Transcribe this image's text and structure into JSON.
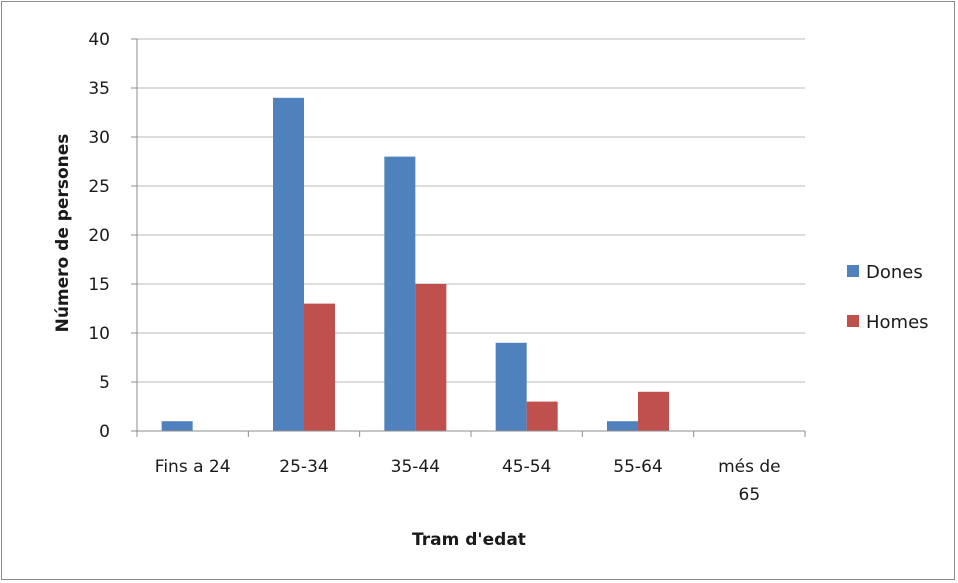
{
  "chart_data": {
    "type": "bar",
    "title": "",
    "xlabel": "Tram d'edat",
    "ylabel": "Número de persones",
    "categories": [
      [
        "Fins a 24"
      ],
      [
        "25-34"
      ],
      [
        "35-44"
      ],
      [
        "45-54"
      ],
      [
        "55-64"
      ],
      [
        "més de",
        "65"
      ]
    ],
    "series": [
      {
        "name": "Dones",
        "color": "#4f81bd",
        "values": [
          1,
          34,
          28,
          9,
          1,
          0
        ]
      },
      {
        "name": "Homes",
        "color": "#c0504d",
        "values": [
          0,
          13,
          15,
          3,
          4,
          0
        ]
      }
    ],
    "ylim": [
      0,
      40
    ],
    "yticks": [
      0,
      5,
      10,
      15,
      20,
      25,
      30,
      35,
      40
    ],
    "grid": true,
    "legend": "right"
  }
}
